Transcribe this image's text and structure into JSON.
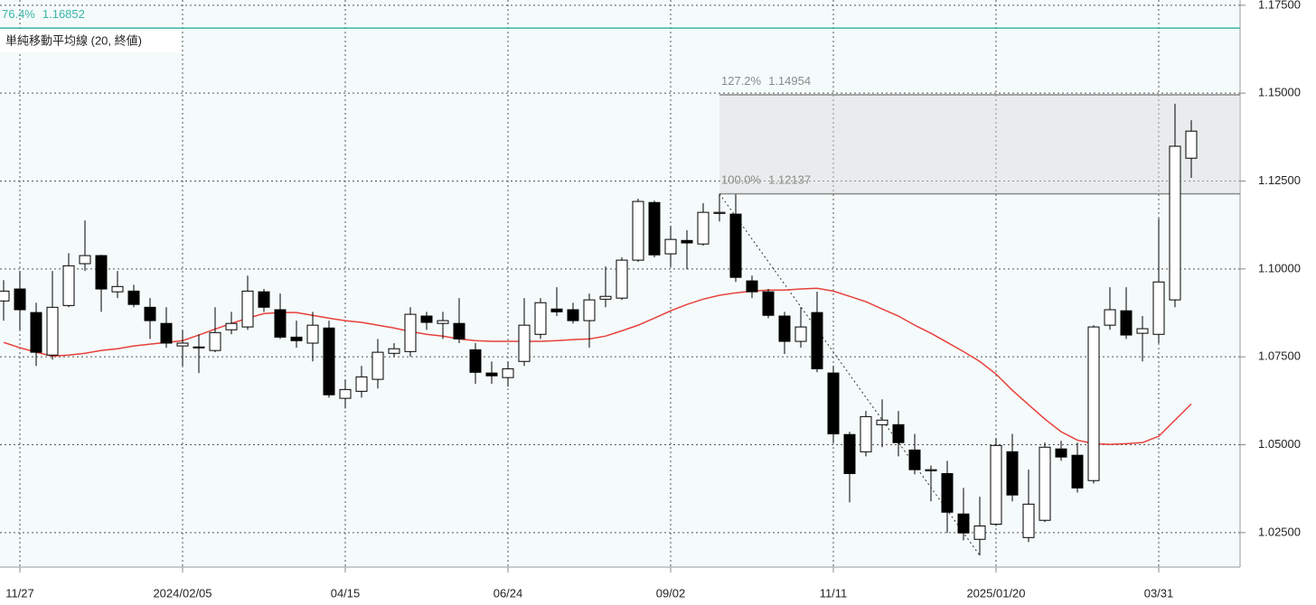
{
  "chart_data": {
    "type": "candlestick",
    "categories": [
      null,
      "11/27",
      null,
      null,
      null,
      null,
      null,
      null,
      null,
      null,
      null,
      "2024/02/05",
      null,
      null,
      null,
      null,
      null,
      null,
      null,
      null,
      null,
      "04/15",
      null,
      null,
      null,
      null,
      null,
      null,
      null,
      null,
      null,
      "06/24",
      null,
      null,
      null,
      null,
      null,
      null,
      null,
      null,
      null,
      "09/02",
      null,
      null,
      null,
      null,
      null,
      null,
      null,
      null,
      null,
      "11/11",
      null,
      null,
      null,
      null,
      null,
      null,
      null,
      null,
      null,
      "2025/01/20",
      null,
      null,
      null,
      null,
      null,
      null,
      null,
      null,
      null,
      "03/31",
      null,
      null
    ],
    "open": [
      1.0909,
      1.0943,
      1.0876,
      1.0755,
      1.0896,
      1.1015,
      1.1038,
      1.0935,
      1.0937,
      1.0891,
      1.0845,
      1.0781,
      1.0778,
      1.0768,
      1.0827,
      1.0835,
      1.0935,
      1.0884,
      1.0806,
      1.0789,
      1.0832,
      1.0632,
      1.0652,
      1.0686,
      1.076,
      1.0765,
      1.0866,
      1.0845,
      1.0845,
      1.077,
      1.0704,
      1.0691,
      1.0737,
      1.0814,
      1.0886,
      1.0884,
      1.0853,
      1.0914,
      1.0917,
      1.1025,
      1.1189,
      1.1043,
      1.1081,
      1.1071,
      1.1158,
      1.1156,
      1.0966,
      1.0935,
      1.0866,
      1.0794,
      1.0876,
      1.0704,
      1.0529,
      1.048,
      1.0557,
      1.0557,
      1.0485,
      1.0426,
      1.0418,
      1.0303,
      1.0231,
      1.0274,
      1.048,
      1.0236,
      1.0285,
      1.0488,
      1.047,
      1.0398,
      1.084,
      1.0881,
      1.0817,
      1.0814,
      1.0912,
      1.1315
    ],
    "high": [
      1.0968,
      1.0994,
      1.0904,
      1.0994,
      1.1045,
      1.1138,
      1.104,
      1.0994,
      1.0955,
      1.0917,
      1.0891,
      1.0827,
      1.0814,
      1.0891,
      1.0878,
      1.0981,
      1.0943,
      1.093,
      1.0853,
      1.0878,
      1.0853,
      1.0686,
      1.0724,
      1.0801,
      1.0789,
      1.0891,
      1.0878,
      1.0878,
      1.0917,
      1.0789,
      1.0737,
      1.0737,
      1.0917,
      1.0917,
      1.0948,
      1.0904,
      1.093,
      1.1007,
      1.1033,
      1.12,
      1.1194,
      1.1123,
      1.111,
      1.1187,
      1.1212,
      1.1212,
      1.0981,
      1.0943,
      1.0878,
      1.0891,
      1.0935,
      1.0724,
      1.0537,
      1.0596,
      1.0629,
      1.0596,
      1.0531,
      1.0441,
      1.0454,
      1.0377,
      1.0352,
      1.0519,
      1.0531,
      1.0429,
      1.0506,
      1.0511,
      1.0506,
      1.084,
      1.0948,
      1.0948,
      1.0866,
      1.1143,
      1.147,
      1.1423
    ],
    "low": [
      1.0853,
      1.0827,
      1.0724,
      1.0742,
      1.0891,
      1.0994,
      1.0878,
      1.0917,
      1.0891,
      1.0801,
      1.0776,
      1.0724,
      1.0704,
      1.0763,
      1.0814,
      1.0827,
      1.0878,
      1.0801,
      1.0776,
      1.0737,
      1.0634,
      1.0603,
      1.0634,
      1.066,
      1.075,
      1.075,
      1.0827,
      1.0801,
      1.0789,
      1.0673,
      1.0673,
      1.0665,
      1.0724,
      1.0801,
      1.0866,
      1.0845,
      1.0776,
      1.0891,
      1.0912,
      1.102,
      1.1033,
      1.1007,
      1.0999,
      1.1066,
      1.1135,
      1.0963,
      1.0917,
      1.086,
      1.0758,
      1.0776,
      1.0706,
      1.0506,
      1.0336,
      1.0467,
      1.0493,
      1.0467,
      1.0416,
      1.0339,
      1.0249,
      1.0228,
      1.0185,
      1.0269,
      1.0339,
      1.0223,
      1.028,
      1.0454,
      1.0364,
      1.039,
      1.0827,
      1.0801,
      1.0737,
      1.0789,
      1.0891,
      1.1259
    ],
    "close": [
      1.0937,
      1.0884,
      1.0763,
      1.0891,
      1.1009,
      1.1038,
      1.0943,
      1.095,
      1.0899,
      1.0853,
      1.0789,
      1.0789,
      1.0776,
      1.0819,
      1.0845,
      1.0937,
      1.0891,
      1.0806,
      1.0796,
      1.084,
      1.0642,
      1.0657,
      1.0693,
      1.0763,
      1.0773,
      1.0871,
      1.0848,
      1.0853,
      1.0801,
      1.0706,
      1.0696,
      1.0716,
      1.084,
      1.0904,
      1.0878,
      1.0853,
      1.0912,
      1.0922,
      1.1025,
      1.1192,
      1.104,
      1.1084,
      1.1074,
      1.1161,
      1.1161,
      1.0976,
      1.0935,
      1.0868,
      1.0794,
      1.0835,
      1.0716,
      1.0531,
      1.0418,
      1.058,
      1.057,
      1.0506,
      1.0429,
      1.0429,
      1.0308,
      1.0249,
      1.0269,
      1.0498,
      1.0357,
      1.0331,
      1.0493,
      1.0465,
      1.0377,
      1.0835,
      1.0884,
      1.0812,
      1.083,
      1.0963,
      1.1349,
      1.1392
    ],
    "up_color": "#ffffff",
    "down_color": "#000000",
    "moving_average": {
      "name": "単純移動平均線 (20, 終値)",
      "color": "#e8403a",
      "values": [
        1.0791,
        1.0776,
        1.0763,
        1.0752,
        1.0755,
        1.076,
        1.0768,
        1.0773,
        1.0781,
        1.0786,
        1.0791,
        1.0796,
        1.0812,
        1.0829,
        1.0845,
        1.086,
        1.0873,
        1.0876,
        1.0876,
        1.0868,
        1.086,
        1.0853,
        1.0848,
        1.084,
        1.0832,
        1.0822,
        1.0814,
        1.0809,
        1.0801,
        1.0796,
        1.0794,
        1.0794,
        1.0794,
        1.0794,
        1.0796,
        1.0799,
        1.0801,
        1.0809,
        1.0824,
        1.084,
        1.086,
        1.0881,
        1.0899,
        1.0914,
        1.0925,
        1.0932,
        1.0937,
        1.094,
        1.094,
        1.0943,
        1.0945,
        1.0937,
        1.0922,
        1.0907,
        1.0886,
        1.0866,
        1.084,
        1.0817,
        1.0791,
        1.0765,
        1.0737,
        1.0701,
        1.0655,
        1.0614,
        1.0573,
        1.0537,
        1.0513,
        1.0503,
        1.0501,
        1.0503,
        1.0506,
        1.0524,
        1.057,
        1.0616
      ]
    },
    "fib_levels": [
      {
        "label": "76.4%",
        "value": 1.16852,
        "color": "#3ab5a8",
        "full_width": true
      },
      {
        "label": "127.2%",
        "value": 1.14954,
        "color": "#8a8a8a"
      },
      {
        "label": "100.0%",
        "value": 1.12137,
        "color": "#8a8a8a"
      }
    ],
    "fib_start": 44,
    "trendline": {
      "x": [
        44,
        60
      ],
      "y": [
        1.12137,
        1.0185
      ]
    },
    "ylim": [
      1.0152,
      1.1765
    ],
    "yticks": [
      {
        "value": 1.025,
        "label": "1.02500"
      },
      {
        "value": 1.05,
        "label": "1.05000"
      },
      {
        "value": 1.075,
        "label": "1.07500"
      },
      {
        "value": 1.1,
        "label": "1.10000"
      },
      {
        "value": 1.125,
        "label": "1.12500"
      },
      {
        "value": 1.15,
        "label": "1.15000"
      },
      {
        "value": 1.175,
        "label": "1.17500"
      }
    ],
    "grid": true
  }
}
